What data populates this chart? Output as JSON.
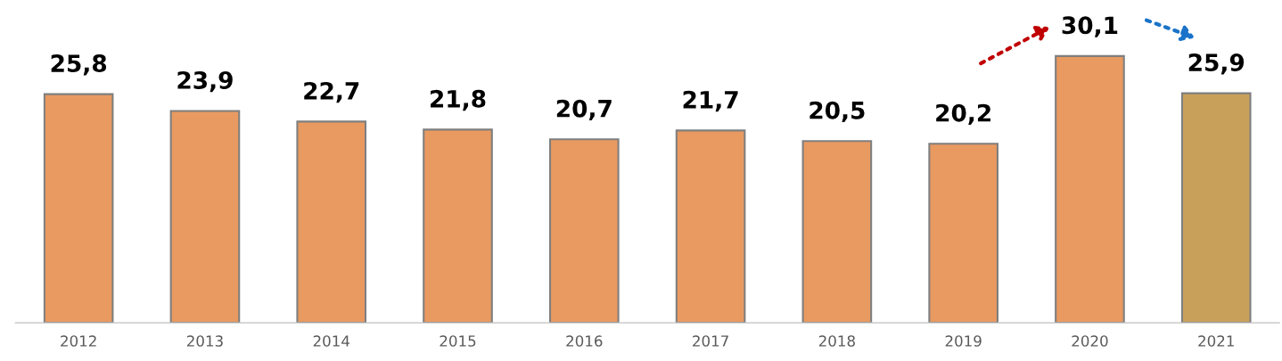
{
  "chart_data": {
    "type": "bar",
    "categories": [
      "2012",
      "2013",
      "2014",
      "2015",
      "2016",
      "2017",
      "2018",
      "2019",
      "2020",
      "2021"
    ],
    "values": [
      25.8,
      23.9,
      22.7,
      21.8,
      20.7,
      21.7,
      20.5,
      20.2,
      30.1,
      25.9
    ],
    "colors": [
      "#e99a61",
      "#e99a61",
      "#e99a61",
      "#e99a61",
      "#e99a61",
      "#e99a61",
      "#e99a61",
      "#e99a61",
      "#e99a61",
      "#c9a05a"
    ],
    "value_labels": [
      "25,8",
      "23,9",
      "22,7",
      "21,8",
      "20,7",
      "21,7",
      "20,5",
      "20,2",
      "30,1",
      "25,9"
    ],
    "grid": false,
    "legend": false
  }
}
